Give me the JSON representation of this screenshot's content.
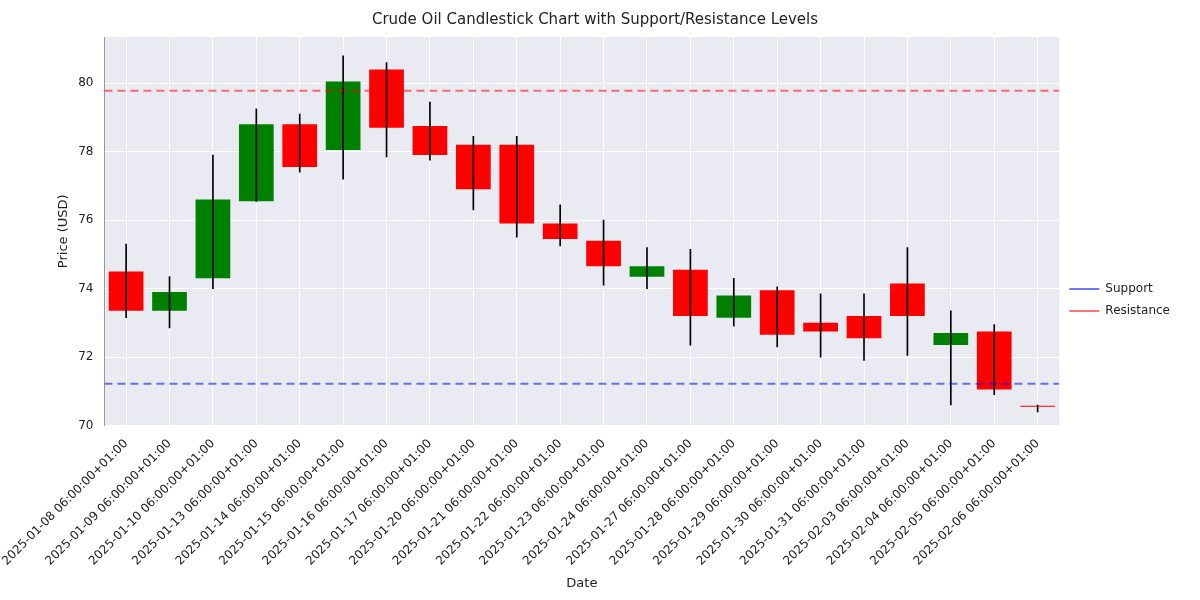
{
  "chart_data": {
    "type": "candlestick",
    "title": "Crude Oil Candlestick Chart with Support/Resistance Levels",
    "x_label": "Date",
    "y_label": "Price (USD)",
    "categories": [
      "2025-01-08 06:00:00+01:00",
      "2025-01-09 06:00:00+01:00",
      "2025-01-10 06:00:00+01:00",
      "2025-01-13 06:00:00+01:00",
      "2025-01-14 06:00:00+01:00",
      "2025-01-15 06:00:00+01:00",
      "2025-01-16 06:00:00+01:00",
      "2025-01-17 06:00:00+01:00",
      "2025-01-20 06:00:00+01:00",
      "2025-01-21 06:00:00+01:00",
      "2025-01-22 06:00:00+01:00",
      "2025-01-23 06:00:00+01:00",
      "2025-01-24 06:00:00+01:00",
      "2025-01-27 06:00:00+01:00",
      "2025-01-28 06:00:00+01:00",
      "2025-01-29 06:00:00+01:00",
      "2025-01-30 06:00:00+01:00",
      "2025-01-31 06:00:00+01:00",
      "2025-02-03 06:00:00+01:00",
      "2025-02-04 06:00:00+01:00",
      "2025-02-05 06:00:00+01:00",
      "2025-02-06 06:00:00+01:00"
    ],
    "open": [
      74.5,
      73.35,
      74.3,
      76.55,
      78.8,
      78.05,
      80.4,
      78.75,
      78.2,
      78.2,
      75.9,
      75.4,
      74.35,
      74.55,
      73.15,
      73.95,
      73.0,
      73.2,
      74.15,
      72.35,
      72.75,
      70.58
    ],
    "high": [
      75.3,
      74.35,
      77.9,
      79.25,
      79.1,
      80.8,
      80.6,
      79.45,
      78.45,
      78.45,
      76.45,
      76.0,
      75.2,
      75.15,
      74.3,
      74.05,
      73.85,
      73.85,
      75.2,
      73.35,
      72.95,
      70.6
    ],
    "low": [
      73.15,
      72.85,
      74.0,
      76.55,
      77.4,
      77.2,
      77.85,
      77.75,
      76.3,
      75.5,
      75.25,
      74.1,
      74.0,
      72.35,
      72.9,
      72.3,
      72.0,
      71.9,
      72.05,
      70.6,
      70.9,
      70.4
    ],
    "close": [
      73.35,
      73.9,
      76.6,
      78.8,
      77.55,
      80.05,
      78.7,
      77.9,
      76.9,
      75.9,
      75.45,
      74.65,
      74.65,
      73.2,
      73.8,
      72.65,
      72.75,
      72.55,
      73.2,
      72.7,
      71.05,
      70.55
    ],
    "colors": [
      "#ff0000",
      "#008000",
      "#008000",
      "#008000",
      "#ff0000",
      "#008000",
      "#ff0000",
      "#ff0000",
      "#ff0000",
      "#ff0000",
      "#ff0000",
      "#ff0000",
      "#008000",
      "#ff0000",
      "#008000",
      "#ff0000",
      "#ff0000",
      "#ff0000",
      "#ff0000",
      "#008000",
      "#ff0000",
      "#ff0000"
    ],
    "lines": [
      {
        "name": "Support",
        "value": 71.22,
        "color": "rgba(0,0,255,0.55)",
        "line_style": "dashed"
      },
      {
        "name": "Resistance",
        "value": 79.78,
        "color": "rgba(255,0,0,0.55)",
        "line_style": "dashed"
      }
    ],
    "ylim": [
      70,
      81.35
    ],
    "yticks": [
      70,
      72,
      74,
      76,
      78,
      80
    ],
    "grid": true,
    "legend": "right"
  }
}
